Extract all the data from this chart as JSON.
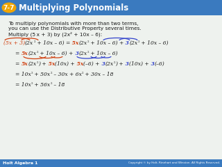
{
  "title_badge": "7-7",
  "title_text": "Multiplying Polynomials",
  "header_bg": "#3a7abf",
  "badge_bg": "#f0a500",
  "badge_fg": "#ffffff",
  "title_fg": "#ffffff",
  "body_bg": "#eef2ee",
  "footer_bg": "#3a7abf",
  "footer_fg": "#ffffff",
  "footer_left": "Holt Algebra 1",
  "footer_right": "Copyright © by Holt, Rinehart and Winston. All Rights Reserved.",
  "red": "#d04010",
  "blue": "#3344cc",
  "black": "#1a1a1a"
}
